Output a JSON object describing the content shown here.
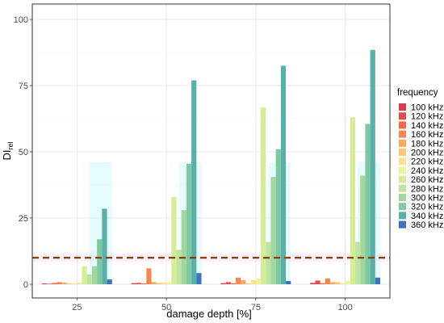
{
  "chart_data": {
    "type": "bar",
    "title": "",
    "xlabel": "damage depth [%]",
    "ylabel_main": "DI",
    "ylabel_sub": "rel",
    "categories": [
      "25",
      "50",
      "75",
      "100"
    ],
    "ylim": [
      0,
      100
    ],
    "yticks": [
      "0",
      "25",
      "50",
      "75",
      "100"
    ],
    "grid": true,
    "legend": {
      "title": "frequency",
      "position": "right"
    },
    "threshold": {
      "value": 10,
      "color": "#8B4513",
      "style": "dashed"
    },
    "series": [
      {
        "name": "100 kHz",
        "color": "#D53E4F",
        "values": [
          0.3,
          0.4,
          0.4,
          0.5
        ]
      },
      {
        "name": "120 kHz",
        "color": "#E04E4F",
        "values": [
          0.2,
          0.5,
          0.8,
          1.4
        ]
      },
      {
        "name": "140 kHz",
        "color": "#EE6A46",
        "values": [
          0.5,
          0.3,
          0.4,
          0.4
        ]
      },
      {
        "name": "160 kHz",
        "color": "#F4884E",
        "values": [
          0.8,
          6.0,
          2.5,
          2.2
        ]
      },
      {
        "name": "180 kHz",
        "color": "#F9A860",
        "values": [
          0.6,
          0.8,
          1.6,
          0.8
        ]
      },
      {
        "name": "200 kHz",
        "color": "#FDC677",
        "values": [
          0.3,
          0.5,
          0.3,
          0.8
        ]
      },
      {
        "name": "220 kHz",
        "color": "#FDE08B",
        "values": [
          0.4,
          0.6,
          1.5,
          0.4
        ]
      },
      {
        "name": "240 kHz",
        "color": "#F0F2A0",
        "values": [
          0.6,
          0.8,
          2.2,
          1.3
        ]
      },
      {
        "name": "260 kHz",
        "color": "#D6EC98",
        "values": [
          6.8,
          33.0,
          66.8,
          63.0
        ]
      },
      {
        "name": "280 kHz",
        "color": "#BEE4A2",
        "values": [
          3.7,
          13.0,
          16.0,
          16.0
        ]
      },
      {
        "name": "300 kHz",
        "color": "#A3D69F",
        "values": [
          6.8,
          28.0,
          40.5,
          41.0
        ]
      },
      {
        "name": "320 kHz",
        "color": "#7FC8A2",
        "values": [
          17.0,
          45.5,
          51.0,
          60.5
        ]
      },
      {
        "name": "340 kHz",
        "color": "#5AAFA9",
        "values": [
          28.5,
          77.0,
          82.5,
          88.5
        ]
      },
      {
        "name": "360 kHz",
        "color": "#3A75B9",
        "values": [
          1.8,
          4.2,
          1.2,
          2.5
        ]
      }
    ]
  }
}
